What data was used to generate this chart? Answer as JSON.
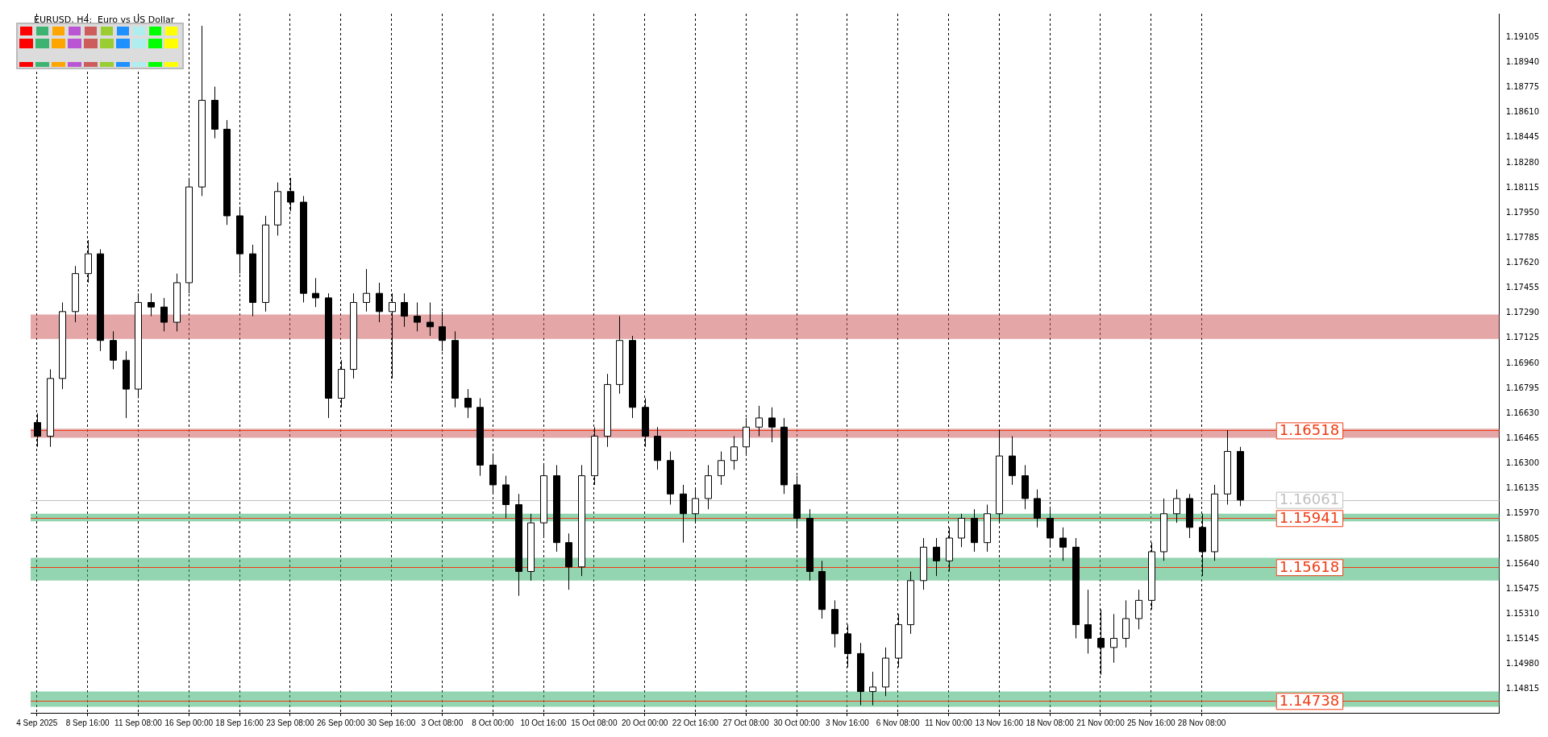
{
  "chart_data": {
    "type": "candlestick",
    "title": "EURUSD, H4:  Euro vs US Dollar",
    "categories": [
      "4 Sep 2025",
      null,
      null,
      null,
      "8 Sep 16:00",
      null,
      null,
      null,
      "11 Sep 08:00",
      null,
      null,
      null,
      "16 Sep 00:00",
      null,
      null,
      null,
      "18 Sep 16:00",
      null,
      null,
      null,
      "23 Sep 08:00",
      null,
      null,
      null,
      "26 Sep 00:00",
      null,
      null,
      null,
      "30 Sep 16:00",
      null,
      null,
      null,
      "3 Oct 08:00",
      null,
      null,
      null,
      "8 Oct 00:00",
      null,
      null,
      null,
      "10 Oct 16:00",
      null,
      null,
      null,
      "15 Oct 08:00",
      null,
      null,
      null,
      "20 Oct 00:00",
      null,
      null,
      null,
      "22 Oct 16:00",
      null,
      null,
      null,
      "27 Oct 08:00",
      null,
      null,
      null,
      "30 Oct 00:00",
      null,
      null,
      null,
      "3 Nov 16:00",
      null,
      null,
      null,
      "6 Nov 08:00",
      null,
      null,
      null,
      "11 Nov 00:00",
      null,
      null,
      null,
      "13 Nov 16:00",
      null,
      null,
      null,
      "18 Nov 08:00",
      null,
      null,
      null,
      "21 Nov 00:00",
      null,
      null,
      null,
      "25 Nov 16:00",
      null,
      null,
      null,
      "28 Nov 08:00",
      null,
      null,
      null,
      null,
      null,
      null,
      null,
      null,
      null,
      null,
      null,
      null,
      null,
      null,
      null,
      null,
      null,
      null,
      null,
      null,
      null,
      null,
      null
    ],
    "ohlc": [
      [
        1.1657,
        1.1663,
        1.1641,
        1.1648
      ],
      [
        1.1648,
        1.1692,
        1.1641,
        1.1686
      ],
      [
        1.1686,
        1.1736,
        1.1679,
        1.173
      ],
      [
        1.173,
        1.176,
        1.1723,
        1.1755
      ],
      [
        1.1755,
        1.1777,
        1.1749,
        1.1768
      ],
      [
        1.1768,
        1.1771,
        1.1704,
        1.1711
      ],
      [
        1.1711,
        1.1717,
        1.1692,
        1.1698
      ],
      [
        1.1698,
        1.1704,
        1.166,
        1.1679
      ],
      [
        1.1679,
        1.1742,
        1.1673,
        1.1736
      ],
      [
        1.1736,
        1.1742,
        1.1727,
        1.1733
      ],
      [
        1.1733,
        1.1739,
        1.1717,
        1.1723
      ],
      [
        1.1723,
        1.1755,
        1.1717,
        1.1749
      ],
      [
        1.1749,
        1.1818,
        1.1742,
        1.1812
      ],
      [
        1.1812,
        1.1918,
        1.1806,
        1.1869
      ],
      [
        1.1869,
        1.1878,
        1.1844,
        1.185
      ],
      [
        1.185,
        1.1856,
        1.1787,
        1.1793
      ],
      [
        1.1793,
        1.1799,
        1.1755,
        1.1768
      ],
      [
        1.1768,
        1.1774,
        1.1727,
        1.1736
      ],
      [
        1.1736,
        1.1793,
        1.173,
        1.1787
      ],
      [
        1.1787,
        1.1815,
        1.178,
        1.1809
      ],
      [
        1.1809,
        1.1818,
        1.1796,
        1.1802
      ],
      [
        1.1802,
        1.1806,
        1.1736,
        1.1742
      ],
      [
        1.1742,
        1.1752,
        1.1733,
        1.1739
      ],
      [
        1.1739,
        1.1742,
        1.166,
        1.1673
      ],
      [
        1.1673,
        1.1698,
        1.1667,
        1.1692
      ],
      [
        1.1692,
        1.1742,
        1.1686,
        1.1736
      ],
      [
        1.1736,
        1.1758,
        1.173,
        1.1742
      ],
      [
        1.1742,
        1.1749,
        1.1723,
        1.173
      ],
      [
        1.173,
        1.1742,
        1.1686,
        1.1736
      ],
      [
        1.1736,
        1.1742,
        1.172,
        1.1727
      ],
      [
        1.1727,
        1.1736,
        1.1717,
        1.1723
      ],
      [
        1.1723,
        1.1736,
        1.1714,
        1.172
      ],
      [
        1.172,
        1.173,
        1.1704,
        1.1711
      ],
      [
        1.1711,
        1.1717,
        1.1667,
        1.1673
      ],
      [
        1.1673,
        1.1679,
        1.166,
        1.1667
      ],
      [
        1.1667,
        1.1673,
        1.1622,
        1.1629
      ],
      [
        1.1629,
        1.1635,
        1.161,
        1.1616
      ],
      [
        1.1616,
        1.1622,
        1.1594,
        1.1603
      ],
      [
        1.1603,
        1.161,
        1.1543,
        1.1559
      ],
      [
        1.1559,
        1.1597,
        1.1553,
        1.1591
      ],
      [
        1.1591,
        1.1629,
        1.1581,
        1.1622
      ],
      [
        1.1622,
        1.1629,
        1.1572,
        1.1578
      ],
      [
        1.1578,
        1.1584,
        1.1547,
        1.1562
      ],
      [
        1.1562,
        1.1629,
        1.1556,
        1.1622
      ],
      [
        1.1622,
        1.1654,
        1.1616,
        1.1648
      ],
      [
        1.1648,
        1.1689,
        1.1641,
        1.1682
      ],
      [
        1.1682,
        1.1727,
        1.1676,
        1.1711
      ],
      [
        1.1711,
        1.1714,
        1.166,
        1.1667
      ],
      [
        1.1667,
        1.1673,
        1.1641,
        1.1648
      ],
      [
        1.1648,
        1.1654,
        1.1626,
        1.1632
      ],
      [
        1.1632,
        1.1638,
        1.1603,
        1.161
      ],
      [
        1.161,
        1.1616,
        1.1578,
        1.1597
      ],
      [
        1.1597,
        1.1613,
        1.1591,
        1.1607
      ],
      [
        1.1607,
        1.1629,
        1.16,
        1.1622
      ],
      [
        1.1622,
        1.1638,
        1.1616,
        1.1632
      ],
      [
        1.1632,
        1.1648,
        1.1626,
        1.1641
      ],
      [
        1.1641,
        1.166,
        1.1635,
        1.1654
      ],
      [
        1.1654,
        1.1668,
        1.1648,
        1.166
      ],
      [
        1.166,
        1.1667,
        1.1644,
        1.1654
      ],
      [
        1.1654,
        1.166,
        1.161,
        1.1616
      ],
      [
        1.1616,
        1.1622,
        1.1588,
        1.1594
      ],
      [
        1.1594,
        1.16,
        1.1553,
        1.1559
      ],
      [
        1.1559,
        1.1566,
        1.1528,
        1.1534
      ],
      [
        1.1534,
        1.154,
        1.1509,
        1.1518
      ],
      [
        1.1518,
        1.1524,
        1.1496,
        1.1505
      ],
      [
        1.1505,
        1.1512,
        1.1471,
        1.148
      ],
      [
        1.148,
        1.1493,
        1.1471,
        1.1483
      ],
      [
        1.1483,
        1.1509,
        1.1477,
        1.1502
      ],
      [
        1.1502,
        1.1531,
        1.1496,
        1.1524
      ],
      [
        1.1524,
        1.1559,
        1.1518,
        1.1553
      ],
      [
        1.1553,
        1.1581,
        1.1547,
        1.1575
      ],
      [
        1.1575,
        1.1581,
        1.1556,
        1.1566
      ],
      [
        1.1566,
        1.1588,
        1.1559,
        1.1581
      ],
      [
        1.1581,
        1.1597,
        1.1575,
        1.1594
      ],
      [
        1.1594,
        1.16,
        1.1572,
        1.1578
      ],
      [
        1.1578,
        1.1603,
        1.1572,
        1.1597
      ],
      [
        1.1597,
        1.1652,
        1.1591,
        1.1635
      ],
      [
        1.1635,
        1.1648,
        1.1616,
        1.1622
      ],
      [
        1.1622,
        1.1629,
        1.16,
        1.1607
      ],
      [
        1.1607,
        1.1613,
        1.1588,
        1.1594
      ],
      [
        1.1594,
        1.16,
        1.1575,
        1.1581
      ],
      [
        1.1581,
        1.1588,
        1.1566,
        1.1575
      ],
      [
        1.1575,
        1.1581,
        1.1515,
        1.1524
      ],
      [
        1.1524,
        1.1547,
        1.1505,
        1.1515
      ],
      [
        1.1515,
        1.1534,
        1.1491,
        1.1509
      ],
      [
        1.1509,
        1.1531,
        1.1499,
        1.1515
      ],
      [
        1.1515,
        1.154,
        1.1509,
        1.1528
      ],
      [
        1.1528,
        1.1547,
        1.1521,
        1.154
      ],
      [
        1.154,
        1.1578,
        1.1534,
        1.1572
      ],
      [
        1.1572,
        1.1607,
        1.1566,
        1.1597
      ],
      [
        1.1597,
        1.1613,
        1.1591,
        1.1607
      ],
      [
        1.1607,
        1.161,
        1.1581,
        1.1588
      ],
      [
        1.1588,
        1.1597,
        1.1556,
        1.1572
      ],
      [
        1.1572,
        1.1616,
        1.1566,
        1.161
      ],
      [
        1.161,
        1.1652,
        1.1603,
        1.1638
      ],
      [
        1.1638,
        1.1641,
        1.1602,
        1.1606
      ],
      null,
      null,
      null,
      null,
      null,
      null,
      null,
      null,
      null,
      null,
      null,
      null,
      null,
      null,
      null,
      null,
      null,
      null,
      null,
      null
    ],
    "ylim": [
      1.1466,
      1.1926
    ],
    "yticks": [
      1.14815,
      {
        "value": 1.1498,
        "label": "1.14980"
      },
      1.15145,
      {
        "value": 1.1531,
        "label": "1.15310"
      },
      1.15475,
      {
        "value": 1.1564,
        "label": "1.15640"
      },
      1.15805,
      {
        "value": 1.1597,
        "label": "1.15970"
      },
      1.16135,
      {
        "value": 1.163,
        "label": "1.16300"
      },
      1.16465,
      {
        "value": 1.1663,
        "label": "1.16630"
      },
      1.16795,
      {
        "value": 1.1696,
        "label": "1.16960"
      },
      1.17125,
      {
        "value": 1.1729,
        "label": "1.17290"
      },
      1.17455,
      {
        "value": 1.1762,
        "label": "1.17620"
      },
      1.17785,
      {
        "value": 1.1795,
        "label": "1.17950"
      },
      1.18115,
      {
        "value": 1.1828,
        "label": "1.18280"
      },
      1.18445,
      {
        "value": 1.1861,
        "label": "1.18610"
      },
      1.18775,
      {
        "value": 1.1894,
        "label": "1.18940"
      },
      1.19105
    ],
    "bands": [
      {
        "axis": "y",
        "from": 1.1712,
        "to": 1.1728,
        "color": "#cd5c5c"
      },
      {
        "axis": "y",
        "from": 1.1647,
        "to": 1.1653,
        "color": "#cd5c5c"
      },
      {
        "axis": "y",
        "from": 1.1592,
        "to": 1.1597,
        "color": "#3cb371"
      },
      {
        "axis": "y",
        "from": 1.1553,
        "to": 1.1568,
        "color": "#3cb371"
      },
      {
        "axis": "y",
        "from": 1.147,
        "to": 1.148,
        "color": "#3cb371"
      }
    ],
    "ref_lines": [
      {
        "axis": "y",
        "value": 1.16518,
        "label": "1.16518",
        "color": "#f03c14"
      },
      {
        "axis": "y",
        "value": 1.16061,
        "label": "1.16061",
        "color": "#c0c0c0"
      },
      {
        "axis": "y",
        "value": 1.15941,
        "label": "1.15941",
        "color": "#f03c14"
      },
      {
        "axis": "y",
        "value": 1.15618,
        "label": "1.15618",
        "color": "#f03c14"
      },
      {
        "axis": "y",
        "value": 1.14738,
        "label": "1.14738",
        "color": "#f03c14"
      }
    ],
    "grid": "x",
    "legend": false
  }
}
